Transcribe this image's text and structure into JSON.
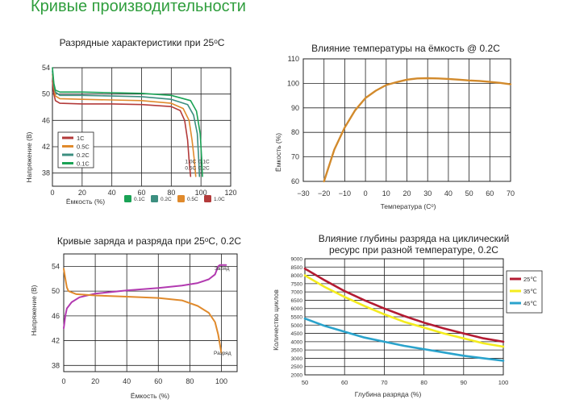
{
  "page": {
    "title": "Кривые производительности"
  },
  "colors": {
    "c1": "#b33a3a",
    "c05": "#e08a2c",
    "c02": "#3c8f80",
    "c01": "#1aa255",
    "charge": "#b23ab0",
    "discharge": "#e08a2c",
    "t25": "#b31b32",
    "t35": "#f4ec1e",
    "t45": "#2aa3cc",
    "temp": "#d28a2c"
  },
  "chart_data": [
    {
      "id": "discharge",
      "type": "line",
      "title": "Разрядные характеристики при 25ᵒC",
      "xlabel": "Ёмкость (%)",
      "ylabel": "Напряжение (В)",
      "xlim": [
        0,
        120
      ],
      "ylim": [
        36,
        54
      ],
      "xticks": [
        "0",
        "20",
        "40",
        "60",
        "80",
        "100",
        "120"
      ],
      "yticks": [
        "38",
        "42",
        "46",
        "50",
        "54"
      ],
      "grid": true,
      "legend_position": "left",
      "legend_labels": [
        "1C",
        "0.5C",
        "0.2C",
        "0.1C"
      ],
      "bottom_legend_labels": [
        "0.1C",
        "0.2C",
        "0.5C",
        "1.0C"
      ],
      "end_labels": [
        {
          "text": "1.0C",
          "x": 93,
          "y": 39.5
        },
        {
          "text": "0.1C",
          "x": 102,
          "y": 39.5
        },
        {
          "text": "0.5C",
          "x": 93,
          "y": 38.5
        },
        {
          "text": "0.2C",
          "x": 102,
          "y": 38.5
        }
      ],
      "series": [
        {
          "name": "1C",
          "color": "#b33a3a",
          "points": [
            [
              0,
              52
            ],
            [
              1,
              50
            ],
            [
              2,
              49
            ],
            [
              5,
              48.6
            ],
            [
              20,
              48.5
            ],
            [
              40,
              48.5
            ],
            [
              60,
              48.4
            ],
            [
              80,
              48.1
            ],
            [
              86,
              47.5
            ],
            [
              89,
              46
            ],
            [
              91,
              43
            ],
            [
              92,
              40
            ],
            [
              93,
              37.5
            ]
          ]
        },
        {
          "name": "0.5C",
          "color": "#e08a2c",
          "points": [
            [
              0,
              53
            ],
            [
              1,
              51
            ],
            [
              2,
              49.7
            ],
            [
              5,
              49.3
            ],
            [
              20,
              49.2
            ],
            [
              40,
              49.1
            ],
            [
              60,
              49
            ],
            [
              80,
              48.6
            ],
            [
              88,
              47.8
            ],
            [
              92,
              46
            ],
            [
              94,
              43
            ],
            [
              95.5,
              40
            ],
            [
              96.5,
              37.5
            ]
          ]
        },
        {
          "name": "0.2C",
          "color": "#3c8f80",
          "points": [
            [
              0,
              53.5
            ],
            [
              1,
              51.3
            ],
            [
              2,
              50.3
            ],
            [
              5,
              49.8
            ],
            [
              20,
              49.8
            ],
            [
              40,
              49.7
            ],
            [
              60,
              49.6
            ],
            [
              80,
              49.2
            ],
            [
              91,
              48.4
            ],
            [
              95,
              46.8
            ],
            [
              97.5,
              44
            ],
            [
              98.5,
              40
            ],
            [
              99,
              37.5
            ]
          ]
        },
        {
          "name": "0.1C",
          "color": "#1aa255",
          "points": [
            [
              0,
              54
            ],
            [
              1,
              51.6
            ],
            [
              2,
              50.6
            ],
            [
              5,
              50.3
            ],
            [
              20,
              50.3
            ],
            [
              40,
              50.2
            ],
            [
              60,
              50.1
            ],
            [
              80,
              49.8
            ],
            [
              93,
              49
            ],
            [
              97,
              47.4
            ],
            [
              99.5,
              44
            ],
            [
              100.5,
              40
            ],
            [
              101,
              37.5
            ]
          ]
        }
      ]
    },
    {
      "id": "temperature",
      "type": "line",
      "title": "Влияние температуры на ёмкость @ 0.2C",
      "xlabel": "Температура (Cᵒ)",
      "ylabel": "Ёмкость (%)",
      "xlim": [
        -30,
        70
      ],
      "ylim": [
        60,
        110
      ],
      "xticks": [
        "−30",
        "−20",
        "−10",
        "0",
        "10",
        "20",
        "30",
        "40",
        "50",
        "60",
        "70"
      ],
      "yticks": [
        "60",
        "70",
        "80",
        "90",
        "100",
        "110"
      ],
      "grid": true,
      "series": [
        {
          "name": "",
          "color": "#d28a2c",
          "points": [
            [
              -20,
              60
            ],
            [
              -15,
              73
            ],
            [
              -10,
              82
            ],
            [
              -5,
              89
            ],
            [
              0,
              94
            ],
            [
              5,
              97
            ],
            [
              10,
              99.3
            ],
            [
              15,
              100.5
            ],
            [
              20,
              101.5
            ],
            [
              25,
              102
            ],
            [
              30,
              102.1
            ],
            [
              35,
              102
            ],
            [
              40,
              101.8
            ],
            [
              45,
              101.5
            ],
            [
              50,
              101.2
            ],
            [
              55,
              101
            ],
            [
              60,
              100.6
            ],
            [
              65,
              100.2
            ],
            [
              70,
              99.6
            ]
          ]
        }
      ]
    },
    {
      "id": "charge-discharge",
      "type": "line",
      "title": "Кривые заряда и разряда при 25ᵒC, 0.2C",
      "xlabel": "Ёмкость (%)",
      "ylabel": "Напряжение (В)",
      "xlim": [
        0,
        110
      ],
      "ylim": [
        37,
        56
      ],
      "xticks": [
        "0",
        "20",
        "40",
        "60",
        "80",
        "100"
      ],
      "yticks": [
        "38",
        "42",
        "46",
        "50",
        "54"
      ],
      "grid": true,
      "series_labels": [
        "Заряд",
        "Разряд"
      ],
      "series": [
        {
          "name": "Заряд",
          "color": "#b23ab0",
          "points": [
            [
              0,
              44
            ],
            [
              1,
              46
            ],
            [
              2,
              47.2
            ],
            [
              5,
              48.2
            ],
            [
              10,
              49
            ],
            [
              20,
              49.6
            ],
            [
              40,
              50.1
            ],
            [
              60,
              50.5
            ],
            [
              75,
              50.9
            ],
            [
              85,
              51.3
            ],
            [
              92,
              51.9
            ],
            [
              96,
              52.7
            ],
            [
              98,
              54
            ],
            [
              99,
              54.2
            ],
            [
              103,
              54.2
            ]
          ]
        },
        {
          "name": "Разряд",
          "color": "#e08a2c",
          "points": [
            [
              0,
              53.6
            ],
            [
              1,
              52
            ],
            [
              2,
              50.6
            ],
            [
              3,
              50
            ],
            [
              8,
              49.5
            ],
            [
              20,
              49.3
            ],
            [
              40,
              49.1
            ],
            [
              60,
              48.9
            ],
            [
              75,
              48.5
            ],
            [
              85,
              47.6
            ],
            [
              92,
              46.5
            ],
            [
              96,
              45
            ],
            [
              98,
              43
            ],
            [
              99,
              41.5
            ],
            [
              100,
              40
            ]
          ]
        }
      ]
    },
    {
      "id": "cycle-life",
      "type": "line",
      "title_lines": [
        "Влияние глубины разряда на циклический",
        "ресурс при разной температуре, 0.2C"
      ],
      "xlabel": "Глубина разряда  (%)",
      "ylabel": "Количество циклов",
      "xlim": [
        50,
        100
      ],
      "ylim": [
        2000,
        9000
      ],
      "xticks": [
        "50",
        "60",
        "70",
        "80",
        "90",
        "100"
      ],
      "yticks": [
        "2000",
        "2500",
        "3000",
        "3500",
        "4000",
        "4500",
        "5000",
        "5500",
        "6000",
        "6500",
        "7000",
        "7500",
        "8000",
        "8500",
        "9000"
      ],
      "grid": true,
      "legend_position": "right",
      "series": [
        {
          "name": "25℃",
          "color": "#b31b32",
          "points": [
            [
              50,
              8400
            ],
            [
              55,
              7700
            ],
            [
              60,
              7050
            ],
            [
              65,
              6500
            ],
            [
              70,
              6000
            ],
            [
              75,
              5550
            ],
            [
              80,
              5150
            ],
            [
              85,
              4800
            ],
            [
              90,
              4500
            ],
            [
              95,
              4200
            ],
            [
              100,
              4000
            ]
          ]
        },
        {
          "name": "35℃",
          "color": "#f4ec1e",
          "points": [
            [
              50,
              8000
            ],
            [
              55,
              7300
            ],
            [
              60,
              6700
            ],
            [
              65,
              6150
            ],
            [
              70,
              5650
            ],
            [
              75,
              5200
            ],
            [
              80,
              4850
            ],
            [
              85,
              4500
            ],
            [
              90,
              4200
            ],
            [
              95,
              3900
            ],
            [
              100,
              3700
            ]
          ]
        },
        {
          "name": "45℃",
          "color": "#2aa3cc",
          "points": [
            [
              50,
              5400
            ],
            [
              55,
              4950
            ],
            [
              60,
              4600
            ],
            [
              65,
              4250
            ],
            [
              70,
              4000
            ],
            [
              75,
              3750
            ],
            [
              80,
              3550
            ],
            [
              85,
              3350
            ],
            [
              90,
              3150
            ],
            [
              95,
              3000
            ],
            [
              100,
              2850
            ]
          ]
        }
      ]
    }
  ]
}
